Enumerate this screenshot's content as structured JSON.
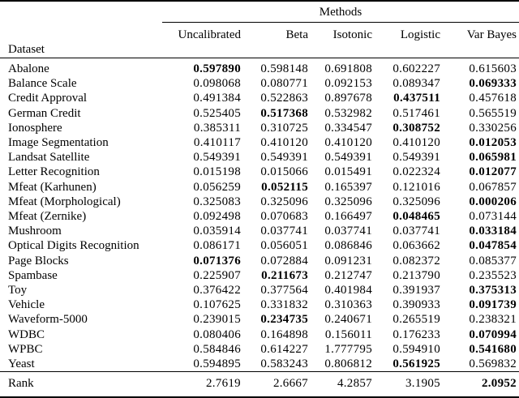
{
  "colors": {
    "background": "#ffffff",
    "text": "#000000",
    "rule": "#000000"
  },
  "table": {
    "group_header": "Methods",
    "row_header_label": "Dataset",
    "columns": [
      "Uncalibrated",
      "Beta",
      "Isotonic",
      "Logistic",
      "Var Bayes"
    ],
    "rows": [
      {
        "dataset": "Abalone",
        "values": [
          "0.597890",
          "0.598148",
          "0.691808",
          "0.602227",
          "0.615603"
        ],
        "bold": 0
      },
      {
        "dataset": "Balance Scale",
        "values": [
          "0.098068",
          "0.080771",
          "0.092153",
          "0.089347",
          "0.069333"
        ],
        "bold": 4
      },
      {
        "dataset": "Credit Approval",
        "values": [
          "0.491384",
          "0.522863",
          "0.897678",
          "0.437511",
          "0.457618"
        ],
        "bold": 3
      },
      {
        "dataset": "German Credit",
        "values": [
          "0.525405",
          "0.517368",
          "0.532982",
          "0.517461",
          "0.565519"
        ],
        "bold": 1
      },
      {
        "dataset": "Ionosphere",
        "values": [
          "0.385311",
          "0.310725",
          "0.334547",
          "0.308752",
          "0.330256"
        ],
        "bold": 3
      },
      {
        "dataset": "Image Segmentation",
        "values": [
          "0.410117",
          "0.410120",
          "0.410120",
          "0.410120",
          "0.012053"
        ],
        "bold": 4
      },
      {
        "dataset": "Landsat Satellite",
        "values": [
          "0.549391",
          "0.549391",
          "0.549391",
          "0.549391",
          "0.065981"
        ],
        "bold": 4
      },
      {
        "dataset": "Letter Recognition",
        "values": [
          "0.015198",
          "0.015066",
          "0.015491",
          "0.022324",
          "0.012077"
        ],
        "bold": 4
      },
      {
        "dataset": "Mfeat (Karhunen)",
        "values": [
          "0.056259",
          "0.052115",
          "0.165397",
          "0.121016",
          "0.067857"
        ],
        "bold": 1
      },
      {
        "dataset": "Mfeat (Morphological)",
        "values": [
          "0.325083",
          "0.325096",
          "0.325096",
          "0.325096",
          "0.000206"
        ],
        "bold": 4
      },
      {
        "dataset": "Mfeat (Zernike)",
        "values": [
          "0.092498",
          "0.070683",
          "0.166497",
          "0.048465",
          "0.073144"
        ],
        "bold": 3
      },
      {
        "dataset": "Mushroom",
        "values": [
          "0.035914",
          "0.037741",
          "0.037741",
          "0.037741",
          "0.033184"
        ],
        "bold": 4
      },
      {
        "dataset": "Optical Digits Recognition",
        "values": [
          "0.086171",
          "0.056051",
          "0.086846",
          "0.063662",
          "0.047854"
        ],
        "bold": 4
      },
      {
        "dataset": "Page Blocks",
        "values": [
          "0.071376",
          "0.072884",
          "0.091231",
          "0.082372",
          "0.085377"
        ],
        "bold": 0
      },
      {
        "dataset": "Spambase",
        "values": [
          "0.225907",
          "0.211673",
          "0.212747",
          "0.213790",
          "0.235523"
        ],
        "bold": 1
      },
      {
        "dataset": "Toy",
        "values": [
          "0.376422",
          "0.377564",
          "0.401984",
          "0.391937",
          "0.375313"
        ],
        "bold": 4
      },
      {
        "dataset": "Vehicle",
        "values": [
          "0.107625",
          "0.331832",
          "0.310363",
          "0.390933",
          "0.091739"
        ],
        "bold": 4
      },
      {
        "dataset": "Waveform-5000",
        "values": [
          "0.239015",
          "0.234735",
          "0.240671",
          "0.265519",
          "0.238321"
        ],
        "bold": 1
      },
      {
        "dataset": "WDBC",
        "values": [
          "0.080406",
          "0.164898",
          "0.156011",
          "0.176233",
          "0.070994"
        ],
        "bold": 4
      },
      {
        "dataset": "WPBC",
        "values": [
          "0.584846",
          "0.614227",
          "1.777795",
          "0.594910",
          "0.541680"
        ],
        "bold": 4
      },
      {
        "dataset": "Yeast",
        "values": [
          "0.594895",
          "0.583243",
          "0.806812",
          "0.561925",
          "0.569832"
        ],
        "bold": 3
      }
    ],
    "footer": {
      "label": "Rank",
      "values": [
        "2.7619",
        "2.6667",
        "4.2857",
        "3.1905",
        "2.0952"
      ],
      "bold": 4
    }
  }
}
